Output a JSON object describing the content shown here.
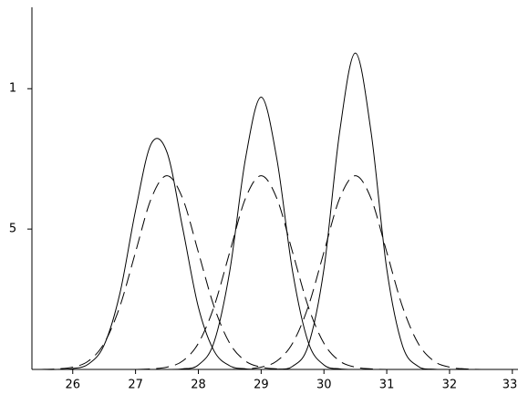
{
  "chart_data": {
    "type": "line",
    "x": [
      25.5,
      25.75,
      26,
      26.25,
      26.5,
      26.75,
      27,
      27.25,
      27.5,
      27.75,
      28,
      28.25,
      28.5,
      28.75,
      29,
      29.25,
      29.5,
      29.75,
      30,
      30.25,
      30.5,
      30.75,
      31,
      31.25,
      31.5,
      31.75,
      32,
      32.25,
      32.5,
      32.75,
      33
    ],
    "series": [
      {
        "color": "#000000",
        "style": "solid",
        "values": [
          0,
          0,
          0.03,
          0.19,
          0.87,
          2.7,
          5.66,
          8.04,
          7.74,
          5.04,
          2.22,
          0.66,
          0.13,
          0.02,
          0,
          0,
          0,
          0,
          0,
          0,
          0,
          0,
          0,
          0,
          0,
          0,
          0,
          0,
          0,
          0,
          0
        ]
      },
      {
        "color": "#000000",
        "style": "solid",
        "values": [
          0,
          0,
          0,
          0,
          0,
          0,
          0,
          0,
          0,
          0.02,
          0.16,
          0.97,
          3.5,
          7.5,
          9.7,
          7.5,
          3.5,
          0.97,
          0.16,
          0.02,
          0,
          0,
          0,
          0,
          0,
          0,
          0,
          0,
          0,
          0,
          0
        ]
      },
      {
        "color": "#000000",
        "style": "solid",
        "values": [
          0,
          0,
          0,
          0,
          0,
          0,
          0,
          0,
          0,
          0,
          0,
          0,
          0,
          0,
          0,
          0.01,
          0.11,
          0.85,
          3.58,
          8.46,
          11.27,
          8.46,
          3.58,
          0.85,
          0.11,
          0.01,
          0,
          0,
          0,
          0,
          0
        ]
      },
      {
        "color": "#000000",
        "style": "dashed",
        "values": [
          0,
          0.02,
          0.08,
          0.3,
          0.93,
          2.24,
          4.18,
          6.09,
          6.9,
          6.09,
          4.18,
          2.24,
          0.93,
          0.3,
          0.08,
          0.02,
          0,
          0,
          0,
          0,
          0,
          0,
          0,
          0,
          0,
          0,
          0,
          0,
          0,
          0,
          0
        ]
      },
      {
        "color": "#000000",
        "style": "dashed",
        "values": [
          0,
          0,
          0,
          0,
          0,
          0,
          0,
          0.02,
          0.08,
          0.3,
          0.93,
          2.24,
          4.18,
          6.09,
          6.9,
          6.09,
          4.18,
          2.24,
          0.93,
          0.3,
          0.08,
          0.02,
          0,
          0,
          0,
          0,
          0,
          0,
          0,
          0,
          0
        ]
      },
      {
        "color": "#000000",
        "style": "dashed",
        "values": [
          0,
          0,
          0,
          0,
          0,
          0,
          0,
          0,
          0,
          0,
          0,
          0,
          0,
          0.02,
          0.08,
          0.3,
          0.93,
          2.24,
          4.18,
          6.09,
          6.9,
          6.09,
          4.18,
          2.24,
          0.93,
          0.3,
          0.08,
          0.02,
          0,
          0,
          0
        ]
      }
    ],
    "xlim": [
      25.35,
      33.09
    ],
    "xticks": [
      26,
      27,
      28,
      29,
      30,
      31,
      32,
      33
    ],
    "ylim": [
      0,
      12.9
    ],
    "yticks": [
      5,
      {
        "value": 10,
        "label": "1"
      }
    ]
  }
}
